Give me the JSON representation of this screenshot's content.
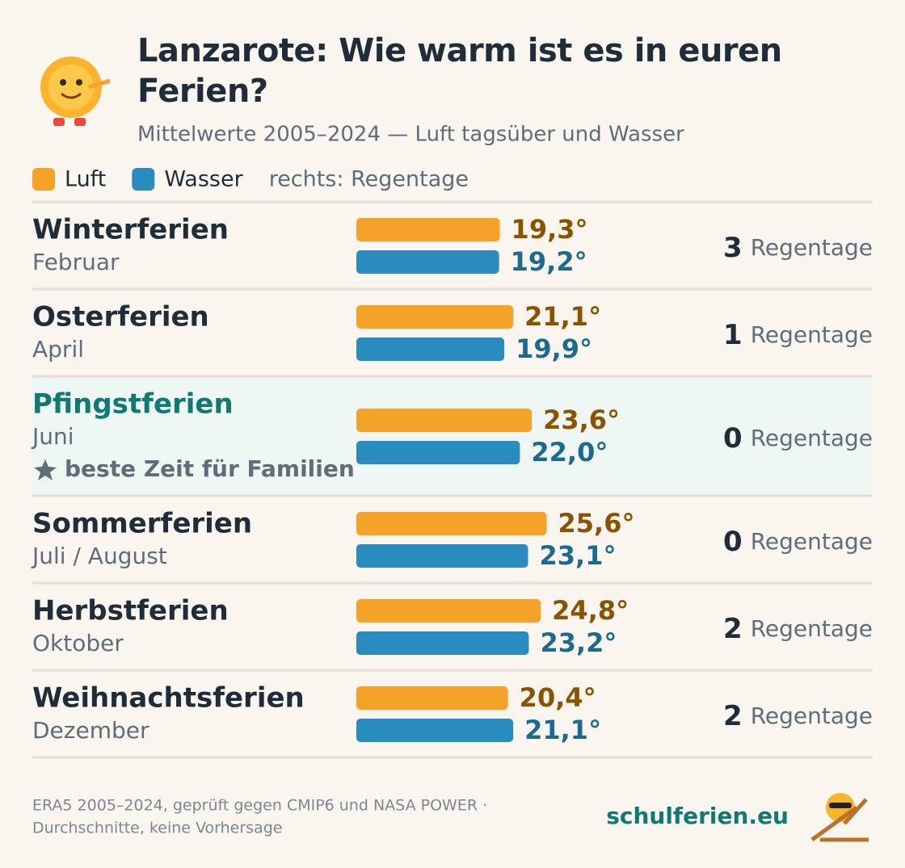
{
  "chart_data": {
    "type": "bar",
    "title": "Lanzarote: Wie warm ist es in euren Ferien?",
    "subtitle": "Mittelwerte 2005–2024 — Luft tagsüber und Wasser",
    "legend_note": "rechts: Regentage",
    "categories": [
      "Winterferien",
      "Osterferien",
      "Pfingstferien",
      "Sommerferien",
      "Herbstferien",
      "Weihnachtsferien"
    ],
    "category_notes": [
      "Februar",
      "April",
      "Juni",
      "Juli / August",
      "Oktober",
      "Dezember"
    ],
    "highlight": {
      "index": 2,
      "note": "beste Zeit für Familien"
    },
    "series": [
      {
        "name": "Luft",
        "color": "#f5a229",
        "values": [
          19.3,
          21.1,
          23.6,
          25.6,
          24.8,
          20.4
        ],
        "value_labels": [
          "19,3°",
          "21,1°",
          "23,6°",
          "25,6°",
          "24,8°",
          "20,4°"
        ]
      },
      {
        "name": "Wasser",
        "color": "#2a8bbf",
        "values": [
          19.2,
          19.9,
          22.0,
          23.1,
          23.2,
          21.1
        ],
        "value_labels": [
          "19,2°",
          "19,9°",
          "22,0°",
          "23,1°",
          "23,2°",
          "21,1°"
        ]
      }
    ],
    "rain_days": {
      "label": "Regentage",
      "values": [
        3,
        1,
        0,
        0,
        2,
        2
      ]
    }
  },
  "footer": {
    "source": [
      "ERA5 2005–2024, geprüft gegen CMIP6 und NASA POWER ·",
      "Durchschnitte, keine Vorhersage"
    ],
    "brand": "schulferien.eu"
  }
}
